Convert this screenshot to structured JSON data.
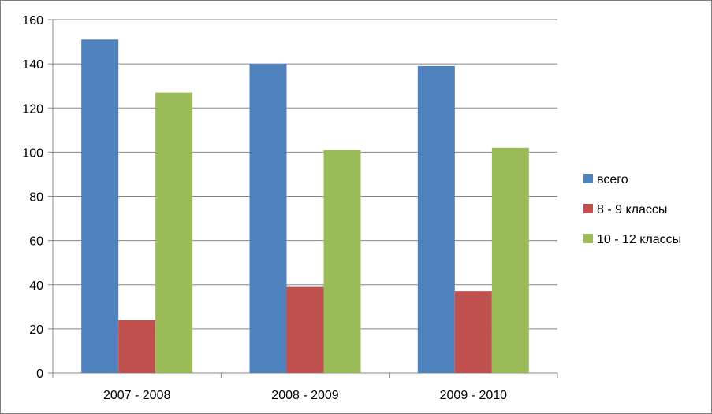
{
  "chart_data": {
    "type": "bar",
    "categories": [
      "2007 - 2008",
      "2008 - 2009",
      "2009 - 2010"
    ],
    "series": [
      {
        "name": "всего",
        "values": [
          151,
          140,
          139
        ],
        "color": "#4f81bd"
      },
      {
        "name": "8 - 9 классы",
        "values": [
          24,
          39,
          37
        ],
        "color": "#c0504d"
      },
      {
        "name": "10 - 12 классы",
        "values": [
          127,
          101,
          102
        ],
        "color": "#9bbb59"
      }
    ],
    "ylim": [
      0,
      160
    ],
    "yticks": [
      0,
      20,
      40,
      60,
      80,
      100,
      120,
      140,
      160
    ],
    "grid": true,
    "legend": "right"
  }
}
